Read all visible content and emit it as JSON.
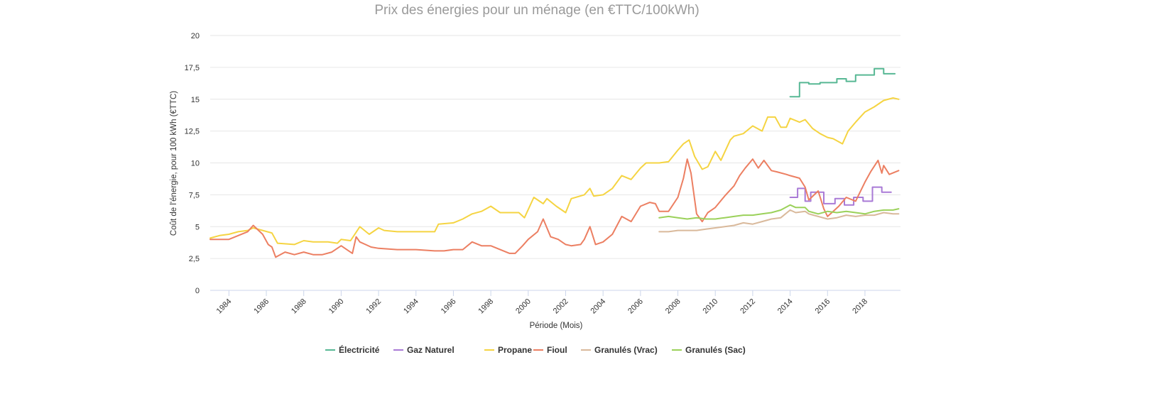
{
  "chart_data": {
    "type": "line",
    "title": "Prix des énergies pour un ménage (en €TTC/100kWh)",
    "xlabel": "Période (Mois)",
    "ylabel": "Coût de l'énergie, pour 100 kWh (€TTC)",
    "xlim": [
      1983.0,
      2019.9
    ],
    "ylim": [
      0,
      20
    ],
    "yticks": [
      0,
      2.5,
      5,
      7.5,
      10,
      12.5,
      15,
      17.5,
      20
    ],
    "ytick_labels": [
      "0",
      "2,5",
      "5",
      "7,5",
      "10",
      "12,5",
      "15",
      "17,5",
      "20"
    ],
    "xticks": [
      1984,
      1986,
      1988,
      1990,
      1992,
      1994,
      1996,
      1998,
      2000,
      2002,
      2004,
      2006,
      2008,
      2010,
      2012,
      2014,
      2016,
      2018
    ],
    "xtick_labels": [
      "1984",
      "1986",
      "1988",
      "1990",
      "1992",
      "1994",
      "1996",
      "1998",
      "2000",
      "2002",
      "2004",
      "2006",
      "2008",
      "2010",
      "2012",
      "2014",
      "2016",
      "2018"
    ],
    "grid": "horizontal",
    "legend_position": "bottom-center",
    "series": [
      {
        "name": "Électricité",
        "color": "#57b894",
        "step": true,
        "points": [
          [
            2014.0,
            15.2
          ],
          [
            2014.5,
            15.2
          ],
          [
            2014.5,
            16.3
          ],
          [
            2015.0,
            16.3
          ],
          [
            2015.0,
            16.2
          ],
          [
            2015.6,
            16.2
          ],
          [
            2015.6,
            16.3
          ],
          [
            2016.5,
            16.3
          ],
          [
            2016.5,
            16.6
          ],
          [
            2017.0,
            16.6
          ],
          [
            2017.0,
            16.4
          ],
          [
            2017.5,
            16.4
          ],
          [
            2017.5,
            16.9
          ],
          [
            2018.5,
            16.9
          ],
          [
            2018.5,
            17.4
          ],
          [
            2019.0,
            17.4
          ],
          [
            2019.0,
            17.0
          ],
          [
            2019.6,
            17.0
          ]
        ]
      },
      {
        "name": "Gaz Naturel",
        "color": "#a97ad6",
        "step": true,
        "points": [
          [
            2014.0,
            7.3
          ],
          [
            2014.4,
            7.3
          ],
          [
            2014.4,
            8.0
          ],
          [
            2014.8,
            8.0
          ],
          [
            2014.8,
            7.0
          ],
          [
            2015.1,
            7.0
          ],
          [
            2015.1,
            7.7
          ],
          [
            2015.8,
            7.7
          ],
          [
            2015.8,
            6.8
          ],
          [
            2016.4,
            6.8
          ],
          [
            2016.4,
            7.2
          ],
          [
            2016.9,
            7.2
          ],
          [
            2016.9,
            6.7
          ],
          [
            2017.4,
            6.7
          ],
          [
            2017.4,
            7.3
          ],
          [
            2017.9,
            7.3
          ],
          [
            2017.9,
            7.0
          ],
          [
            2018.4,
            7.0
          ],
          [
            2018.4,
            8.1
          ],
          [
            2018.9,
            8.1
          ],
          [
            2018.9,
            7.7
          ],
          [
            2019.4,
            7.7
          ]
        ]
      },
      {
        "name": "Propane",
        "color": "#f5d442",
        "step": false,
        "points": [
          [
            1983.0,
            4.1
          ],
          [
            1983.5,
            4.3
          ],
          [
            1984.0,
            4.4
          ],
          [
            1984.5,
            4.6
          ],
          [
            1985.0,
            4.7
          ],
          [
            1985.3,
            4.9
          ],
          [
            1985.8,
            4.7
          ],
          [
            1986.3,
            4.5
          ],
          [
            1986.6,
            3.7
          ],
          [
            1987.5,
            3.6
          ],
          [
            1988.0,
            3.9
          ],
          [
            1988.5,
            3.8
          ],
          [
            1989.3,
            3.8
          ],
          [
            1989.8,
            3.7
          ],
          [
            1990.0,
            4.0
          ],
          [
            1990.5,
            3.9
          ],
          [
            1991.0,
            5.0
          ],
          [
            1991.5,
            4.4
          ],
          [
            1992.0,
            4.9
          ],
          [
            1992.3,
            4.7
          ],
          [
            1993.0,
            4.6
          ],
          [
            1994.0,
            4.6
          ],
          [
            1995.0,
            4.6
          ],
          [
            1995.2,
            5.2
          ],
          [
            1996.0,
            5.3
          ],
          [
            1996.5,
            5.6
          ],
          [
            1997.0,
            6.0
          ],
          [
            1997.5,
            6.2
          ],
          [
            1998.0,
            6.6
          ],
          [
            1998.5,
            6.1
          ],
          [
            1999.0,
            6.1
          ],
          [
            1999.5,
            6.1
          ],
          [
            1999.8,
            5.7
          ],
          [
            2000.3,
            7.3
          ],
          [
            2000.8,
            6.8
          ],
          [
            2001.0,
            7.2
          ],
          [
            2001.5,
            6.6
          ],
          [
            2002.0,
            6.1
          ],
          [
            2002.3,
            7.2
          ],
          [
            2003.0,
            7.5
          ],
          [
            2003.3,
            8.0
          ],
          [
            2003.5,
            7.4
          ],
          [
            2004.0,
            7.5
          ],
          [
            2004.5,
            8.0
          ],
          [
            2005.0,
            9.0
          ],
          [
            2005.5,
            8.7
          ],
          [
            2006.0,
            9.6
          ],
          [
            2006.3,
            10.0
          ],
          [
            2007.0,
            10.0
          ],
          [
            2007.5,
            10.1
          ],
          [
            2008.0,
            11.0
          ],
          [
            2008.3,
            11.5
          ],
          [
            2008.6,
            11.8
          ],
          [
            2008.9,
            10.5
          ],
          [
            2009.3,
            9.5
          ],
          [
            2009.6,
            9.7
          ],
          [
            2010.0,
            10.9
          ],
          [
            2010.3,
            10.2
          ],
          [
            2010.8,
            11.8
          ],
          [
            2011.0,
            12.1
          ],
          [
            2011.5,
            12.3
          ],
          [
            2012.0,
            12.9
          ],
          [
            2012.5,
            12.5
          ],
          [
            2012.8,
            13.6
          ],
          [
            2013.2,
            13.6
          ],
          [
            2013.5,
            12.8
          ],
          [
            2013.8,
            12.8
          ],
          [
            2014.0,
            13.5
          ],
          [
            2014.5,
            13.2
          ],
          [
            2014.8,
            13.4
          ],
          [
            2015.2,
            12.7
          ],
          [
            2015.6,
            12.3
          ],
          [
            2016.0,
            12.0
          ],
          [
            2016.3,
            11.9
          ],
          [
            2016.8,
            11.5
          ],
          [
            2017.1,
            12.5
          ],
          [
            2017.5,
            13.2
          ],
          [
            2018.0,
            14.0
          ],
          [
            2018.5,
            14.4
          ],
          [
            2019.0,
            14.9
          ],
          [
            2019.5,
            15.1
          ],
          [
            2019.8,
            15.0
          ]
        ]
      },
      {
        "name": "Fioul",
        "color": "#ec7f62",
        "step": false,
        "points": [
          [
            1983.0,
            4.0
          ],
          [
            1983.5,
            4.0
          ],
          [
            1984.0,
            4.0
          ],
          [
            1984.5,
            4.3
          ],
          [
            1985.0,
            4.6
          ],
          [
            1985.3,
            5.1
          ],
          [
            1985.8,
            4.4
          ],
          [
            1986.1,
            3.6
          ],
          [
            1986.3,
            3.4
          ],
          [
            1986.5,
            2.6
          ],
          [
            1987.0,
            3.0
          ],
          [
            1987.5,
            2.8
          ],
          [
            1988.0,
            3.0
          ],
          [
            1988.5,
            2.8
          ],
          [
            1989.0,
            2.8
          ],
          [
            1989.5,
            3.0
          ],
          [
            1990.0,
            3.5
          ],
          [
            1990.3,
            3.2
          ],
          [
            1990.6,
            2.9
          ],
          [
            1990.8,
            4.2
          ],
          [
            1991.0,
            3.8
          ],
          [
            1991.3,
            3.6
          ],
          [
            1991.6,
            3.4
          ],
          [
            1992.0,
            3.3
          ],
          [
            1993.0,
            3.2
          ],
          [
            1994.0,
            3.2
          ],
          [
            1995.0,
            3.1
          ],
          [
            1995.5,
            3.1
          ],
          [
            1996.0,
            3.2
          ],
          [
            1996.5,
            3.2
          ],
          [
            1997.0,
            3.8
          ],
          [
            1997.5,
            3.5
          ],
          [
            1998.0,
            3.5
          ],
          [
            1998.5,
            3.2
          ],
          [
            1999.0,
            2.9
          ],
          [
            1999.3,
            2.9
          ],
          [
            1999.7,
            3.5
          ],
          [
            2000.0,
            4.0
          ],
          [
            2000.5,
            4.6
          ],
          [
            2000.8,
            5.6
          ],
          [
            2001.2,
            4.2
          ],
          [
            2001.6,
            4.0
          ],
          [
            2002.0,
            3.6
          ],
          [
            2002.3,
            3.5
          ],
          [
            2002.8,
            3.6
          ],
          [
            2003.0,
            4.0
          ],
          [
            2003.3,
            5.0
          ],
          [
            2003.6,
            3.6
          ],
          [
            2004.0,
            3.8
          ],
          [
            2004.5,
            4.4
          ],
          [
            2005.0,
            5.8
          ],
          [
            2005.5,
            5.4
          ],
          [
            2006.0,
            6.6
          ],
          [
            2006.5,
            6.9
          ],
          [
            2006.8,
            6.8
          ],
          [
            2007.0,
            6.2
          ],
          [
            2007.5,
            6.2
          ],
          [
            2008.0,
            7.3
          ],
          [
            2008.3,
            8.8
          ],
          [
            2008.5,
            10.3
          ],
          [
            2008.7,
            9.2
          ],
          [
            2009.0,
            6.0
          ],
          [
            2009.3,
            5.4
          ],
          [
            2009.6,
            6.1
          ],
          [
            2010.0,
            6.5
          ],
          [
            2010.5,
            7.4
          ],
          [
            2011.0,
            8.2
          ],
          [
            2011.3,
            9.0
          ],
          [
            2011.6,
            9.6
          ],
          [
            2012.0,
            10.3
          ],
          [
            2012.3,
            9.6
          ],
          [
            2012.6,
            10.2
          ],
          [
            2013.0,
            9.4
          ],
          [
            2013.3,
            9.3
          ],
          [
            2013.8,
            9.1
          ],
          [
            2014.0,
            9.0
          ],
          [
            2014.5,
            8.8
          ],
          [
            2014.8,
            8.1
          ],
          [
            2015.0,
            7.1
          ],
          [
            2015.5,
            7.8
          ],
          [
            2015.8,
            6.4
          ],
          [
            2016.0,
            5.8
          ],
          [
            2016.3,
            6.2
          ],
          [
            2016.6,
            6.6
          ],
          [
            2017.0,
            7.3
          ],
          [
            2017.5,
            7.0
          ],
          [
            2018.0,
            8.5
          ],
          [
            2018.3,
            9.3
          ],
          [
            2018.7,
            10.2
          ],
          [
            2018.9,
            9.2
          ],
          [
            2019.0,
            9.8
          ],
          [
            2019.3,
            9.1
          ],
          [
            2019.8,
            9.4
          ]
        ]
      },
      {
        "name": "Granulés (Vrac)",
        "color": "#d9b99b",
        "step": false,
        "points": [
          [
            2007.0,
            4.6
          ],
          [
            2007.5,
            4.6
          ],
          [
            2008.0,
            4.7
          ],
          [
            2009.0,
            4.7
          ],
          [
            2009.5,
            4.8
          ],
          [
            2010.0,
            4.9
          ],
          [
            2010.5,
            5.0
          ],
          [
            2011.0,
            5.1
          ],
          [
            2011.5,
            5.3
          ],
          [
            2012.0,
            5.2
          ],
          [
            2012.5,
            5.4
          ],
          [
            2013.0,
            5.6
          ],
          [
            2013.5,
            5.7
          ],
          [
            2014.0,
            6.3
          ],
          [
            2014.3,
            6.1
          ],
          [
            2014.8,
            6.2
          ],
          [
            2015.0,
            6.0
          ],
          [
            2015.5,
            5.8
          ],
          [
            2016.0,
            5.6
          ],
          [
            2016.5,
            5.7
          ],
          [
            2017.0,
            5.9
          ],
          [
            2017.5,
            5.8
          ],
          [
            2018.0,
            5.9
          ],
          [
            2018.5,
            5.9
          ],
          [
            2019.0,
            6.1
          ],
          [
            2019.5,
            6.0
          ],
          [
            2019.8,
            6.0
          ]
        ]
      },
      {
        "name": "Granulés (Sac)",
        "color": "#9bd15a",
        "step": false,
        "points": [
          [
            2007.0,
            5.7
          ],
          [
            2007.5,
            5.8
          ],
          [
            2008.0,
            5.7
          ],
          [
            2008.5,
            5.6
          ],
          [
            2009.0,
            5.7
          ],
          [
            2009.5,
            5.6
          ],
          [
            2010.0,
            5.6
          ],
          [
            2010.5,
            5.7
          ],
          [
            2011.0,
            5.8
          ],
          [
            2011.5,
            5.9
          ],
          [
            2012.0,
            5.9
          ],
          [
            2012.5,
            6.0
          ],
          [
            2013.0,
            6.1
          ],
          [
            2013.5,
            6.3
          ],
          [
            2014.0,
            6.7
          ],
          [
            2014.3,
            6.5
          ],
          [
            2014.8,
            6.5
          ],
          [
            2015.0,
            6.2
          ],
          [
            2015.5,
            6.0
          ],
          [
            2016.0,
            6.2
          ],
          [
            2016.5,
            6.1
          ],
          [
            2017.0,
            6.2
          ],
          [
            2017.5,
            6.1
          ],
          [
            2018.0,
            6.0
          ],
          [
            2018.5,
            6.2
          ],
          [
            2019.0,
            6.3
          ],
          [
            2019.5,
            6.3
          ],
          [
            2019.8,
            6.4
          ]
        ]
      }
    ]
  }
}
